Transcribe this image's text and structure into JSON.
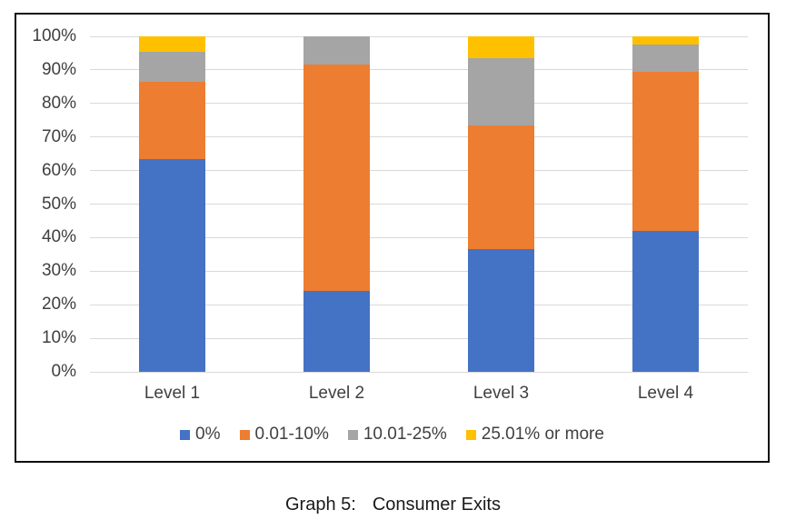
{
  "caption": {
    "prefix": "Graph 5:",
    "title": "Consumer Exits"
  },
  "chart_data": {
    "type": "bar",
    "variant": "stacked-100-percent",
    "title": "Graph 5: Consumer Exits",
    "categories": [
      "Level 1",
      "Level 2",
      "Level 3",
      "Level 4"
    ],
    "series": [
      {
        "name": "0%",
        "color": "#4472C4",
        "values": [
          63.5,
          24,
          36.5,
          42
        ]
      },
      {
        "name": "0.01-10%",
        "color": "#ED7D31",
        "values": [
          23,
          67.5,
          37,
          47.5
        ]
      },
      {
        "name": "10.01-25%",
        "color": "#A5A5A5",
        "values": [
          9,
          8.5,
          20,
          8
        ]
      },
      {
        "name": "25.01% or more",
        "color": "#FFC000",
        "values": [
          4.5,
          0,
          6.5,
          2.5
        ]
      }
    ],
    "y_ticks": [
      "100%",
      "90%",
      "80%",
      "70%",
      "60%",
      "50%",
      "40%",
      "30%",
      "20%",
      "10%",
      "0%"
    ],
    "xlabel": "",
    "ylabel": "",
    "ylim": [
      0,
      100
    ],
    "grid": true,
    "legend_position": "bottom"
  },
  "colors": {
    "grid": "#d9d9d9",
    "axis_text": "#404040",
    "frame_border": "#0d0d0d",
    "caption_text": "#1a1a1a"
  }
}
